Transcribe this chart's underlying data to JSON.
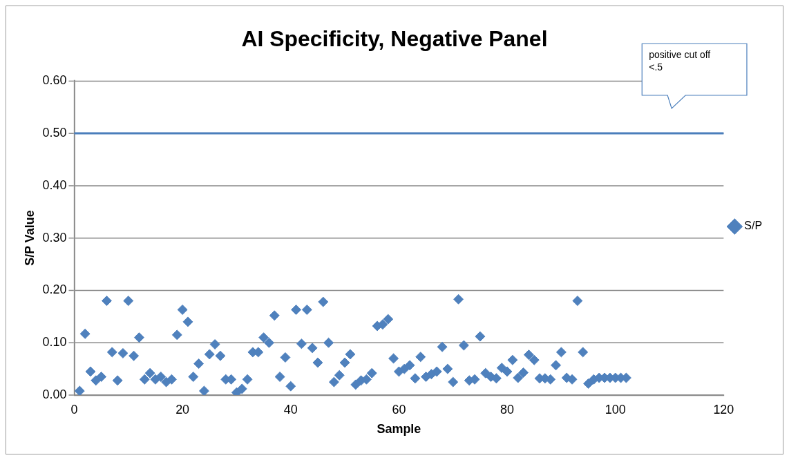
{
  "chart_data": {
    "type": "scatter",
    "title": "AI Specificity, Negative Panel",
    "xlabel": "Sample",
    "ylabel": "S/P Value",
    "x": [
      1,
      2,
      3,
      4,
      5,
      6,
      7,
      8,
      9,
      10,
      11,
      12,
      13,
      14,
      15,
      16,
      17,
      18,
      19,
      20,
      21,
      22,
      23,
      24,
      25,
      26,
      27,
      28,
      29,
      30,
      31,
      32,
      33,
      34,
      35,
      36,
      37,
      38,
      39,
      40,
      41,
      42,
      43,
      44,
      45,
      46,
      47,
      48,
      49,
      50,
      51,
      52,
      53,
      54,
      55,
      56,
      57,
      58,
      59,
      60,
      61,
      62,
      63,
      64,
      65,
      66,
      67,
      68,
      69,
      70,
      71,
      72,
      73,
      74,
      75,
      76,
      77,
      78,
      79,
      80,
      81,
      82,
      83,
      84,
      85,
      86,
      87,
      88,
      89,
      90,
      91,
      92,
      93,
      94,
      95,
      96,
      97,
      98,
      99,
      100,
      101,
      102
    ],
    "series": [
      {
        "name": "S/P",
        "color": "#4f81bd",
        "values": [
          0.008,
          0.117,
          0.045,
          0.028,
          0.035,
          0.18,
          0.082,
          0.028,
          0.08,
          0.18,
          0.075,
          0.11,
          0.03,
          0.042,
          0.03,
          0.035,
          0.025,
          0.03,
          0.115,
          0.163,
          0.14,
          0.035,
          0.06,
          0.008,
          0.078,
          0.097,
          0.075,
          0.03,
          0.03,
          0.005,
          0.012,
          0.03,
          0.082,
          0.082,
          0.11,
          0.1,
          0.152,
          0.035,
          0.072,
          0.017,
          0.163,
          0.098,
          0.163,
          0.09,
          0.062,
          0.178,
          0.1,
          0.025,
          0.038,
          0.062,
          0.078,
          0.02,
          0.028,
          0.03,
          0.042,
          0.132,
          0.135,
          0.145,
          0.07,
          0.045,
          0.05,
          0.057,
          0.032,
          0.073,
          0.035,
          0.04,
          0.045,
          0.092,
          0.05,
          0.025,
          0.183,
          0.095,
          0.028,
          0.03,
          0.112,
          0.042,
          0.035,
          0.032,
          0.052,
          0.045,
          0.067,
          0.033,
          0.043,
          0.077,
          0.067,
          0.032,
          0.032,
          0.03,
          0.057,
          0.082,
          0.033,
          0.03,
          0.18,
          0.082,
          0.022,
          0.03,
          0.033,
          0.033,
          0.033,
          0.033,
          0.033,
          0.033
        ]
      }
    ],
    "xlim": [
      0,
      120
    ],
    "xticks": [
      0,
      20,
      40,
      60,
      80,
      100,
      120
    ],
    "ylim": [
      0,
      0.6
    ],
    "yticks": [
      {
        "value": 0,
        "label": "0.00"
      },
      {
        "value": 0.1,
        "label": "0.10"
      },
      {
        "value": 0.2,
        "label": "0.20"
      },
      {
        "value": 0.3,
        "label": "0.30"
      },
      {
        "value": 0.4,
        "label": "0.40"
      },
      {
        "value": 0.5,
        "label": "0.50"
      },
      {
        "value": 0.6,
        "label": "0.60"
      }
    ],
    "ref_lines": [
      {
        "axis": "y",
        "value": 0.5,
        "color": "#4a7ebb"
      }
    ],
    "annotations": [
      "positive cut off <.5"
    ],
    "grid": "y",
    "legend": "right",
    "marker": "diamond"
  }
}
